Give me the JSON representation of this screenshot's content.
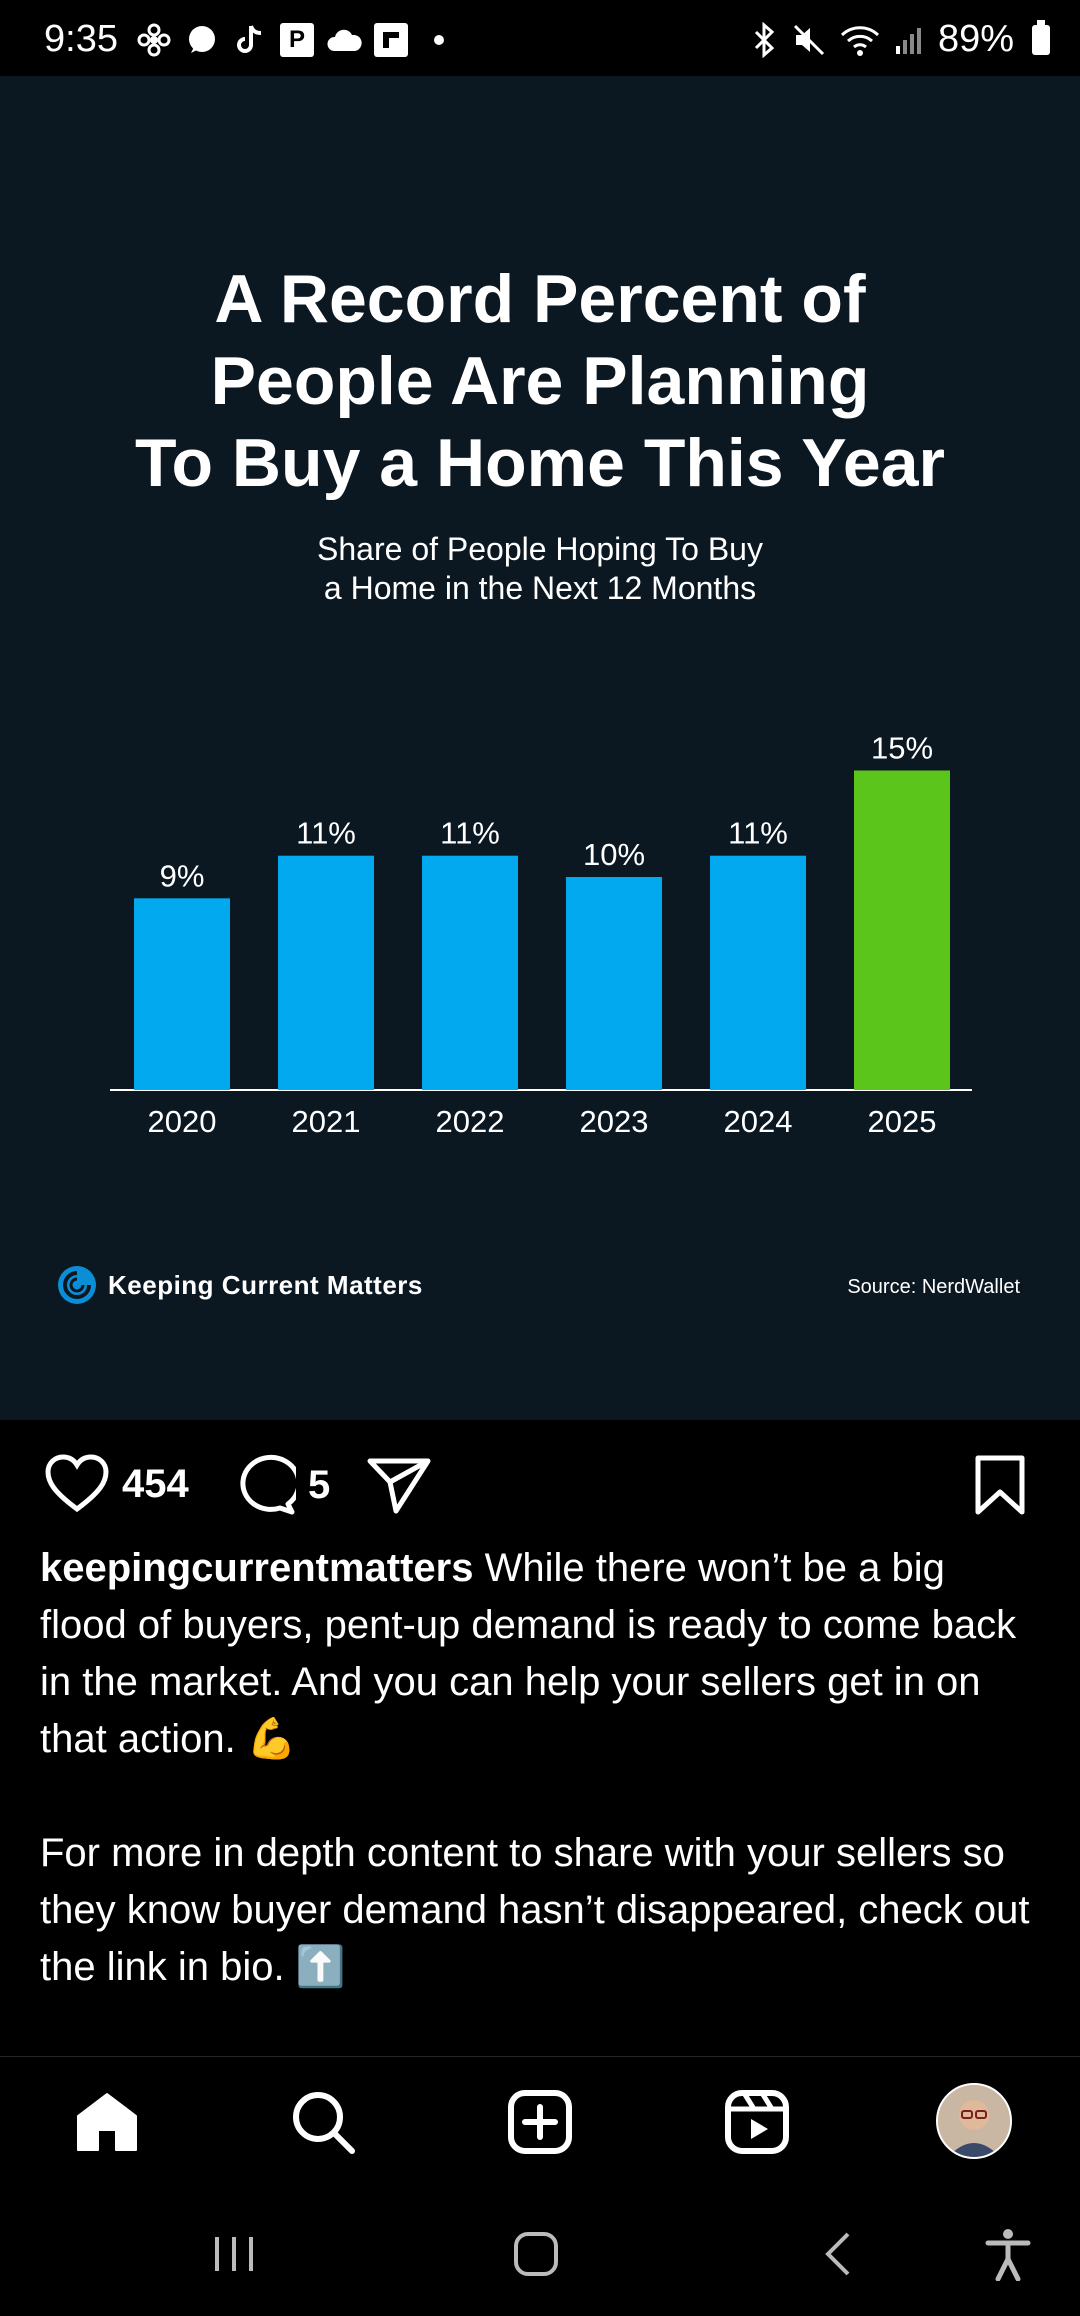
{
  "status_bar": {
    "time": "9:35",
    "battery": "89%",
    "left_icons": [
      "fan-icon",
      "chat-icon",
      "tiktok-icon",
      "p-app-icon",
      "cloud-icon",
      "flipboard-icon",
      "more-dot-icon"
    ],
    "right_icons": [
      "bluetooth-icon",
      "mute-icon",
      "wifi-icon",
      "signal-icon",
      "battery-icon"
    ]
  },
  "post_image": {
    "title_lines": [
      "A Record Percent of",
      "People Are Planning",
      "To Buy a Home This Year"
    ],
    "subtitle_lines": [
      "Share of People Hoping To Buy",
      "a Home in the Next 12 Months"
    ],
    "brand": "Keeping Current Matters",
    "source": "Source: NerdWallet"
  },
  "chart_data": {
    "type": "bar",
    "categories": [
      "2020",
      "2021",
      "2022",
      "2023",
      "2024",
      "2025"
    ],
    "values": [
      9,
      11,
      11,
      10,
      11,
      15
    ],
    "value_labels": [
      "9%",
      "11%",
      "11%",
      "10%",
      "11%",
      "15%"
    ],
    "colors": [
      "#03a9ef",
      "#03a9ef",
      "#03a9ef",
      "#03a9ef",
      "#03a9ef",
      "#5cc51b"
    ],
    "title": "A Record Percent of People Are Planning To Buy a Home This Year",
    "subtitle": "Share of People Hoping To Buy a Home in the Next 12 Months",
    "ylim": [
      0,
      15
    ],
    "grid": false
  },
  "actions": {
    "likes": "454",
    "comments": "5"
  },
  "caption": {
    "username": "keepingcurrentmatters",
    "paragraph1": "While there won’t be a big flood of buyers, pent-up demand is ready to come back in the market. And you can help your sellers get in on that action. 💪",
    "paragraph2": "For more in depth content to share with your sellers so they know buyer demand hasn’t disappeared, check out the link in bio. ⬆️"
  },
  "bottom_nav": [
    "home-icon",
    "search-icon",
    "create-icon",
    "reels-icon",
    "profile-avatar"
  ],
  "system_nav": [
    "recent-apps-icon",
    "home-button-icon",
    "back-icon",
    "accessibility-icon"
  ]
}
